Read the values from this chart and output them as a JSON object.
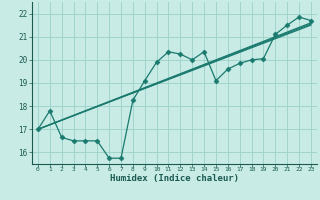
{
  "title": "",
  "xlabel": "Humidex (Indice chaleur)",
  "ylabel": "",
  "bg_color": "#c8ebe6",
  "grid_color": "#a0d4cc",
  "line_color": "#1a7a6e",
  "xlim": [
    -0.5,
    23.5
  ],
  "ylim": [
    15.5,
    22.5
  ],
  "xticks": [
    0,
    1,
    2,
    3,
    4,
    5,
    6,
    7,
    8,
    9,
    10,
    11,
    12,
    13,
    14,
    15,
    16,
    17,
    18,
    19,
    20,
    21,
    22,
    23
  ],
  "yticks": [
    16,
    17,
    18,
    19,
    20,
    21,
    22
  ],
  "lines": [
    {
      "x": [
        0,
        1,
        2,
        3,
        4,
        5,
        6,
        7,
        8,
        9,
        10,
        11,
        12,
        13,
        14,
        15,
        16,
        17,
        18,
        19,
        20,
        21,
        22,
        23
      ],
      "y": [
        17.0,
        17.8,
        16.65,
        16.5,
        16.5,
        16.5,
        15.75,
        15.75,
        18.25,
        19.1,
        19.9,
        20.35,
        20.25,
        20.0,
        20.35,
        19.1,
        19.6,
        19.85,
        20.0,
        20.05,
        21.1,
        21.5,
        21.85,
        21.7
      ],
      "marker": "D",
      "markersize": 2.5
    },
    {
      "x": [
        0,
        23
      ],
      "y": [
        17.0,
        21.6
      ],
      "marker": null,
      "markersize": 0
    },
    {
      "x": [
        0,
        23
      ],
      "y": [
        17.0,
        21.55
      ],
      "marker": null,
      "markersize": 0
    },
    {
      "x": [
        0,
        23
      ],
      "y": [
        17.0,
        21.5
      ],
      "marker": null,
      "markersize": 0
    }
  ]
}
